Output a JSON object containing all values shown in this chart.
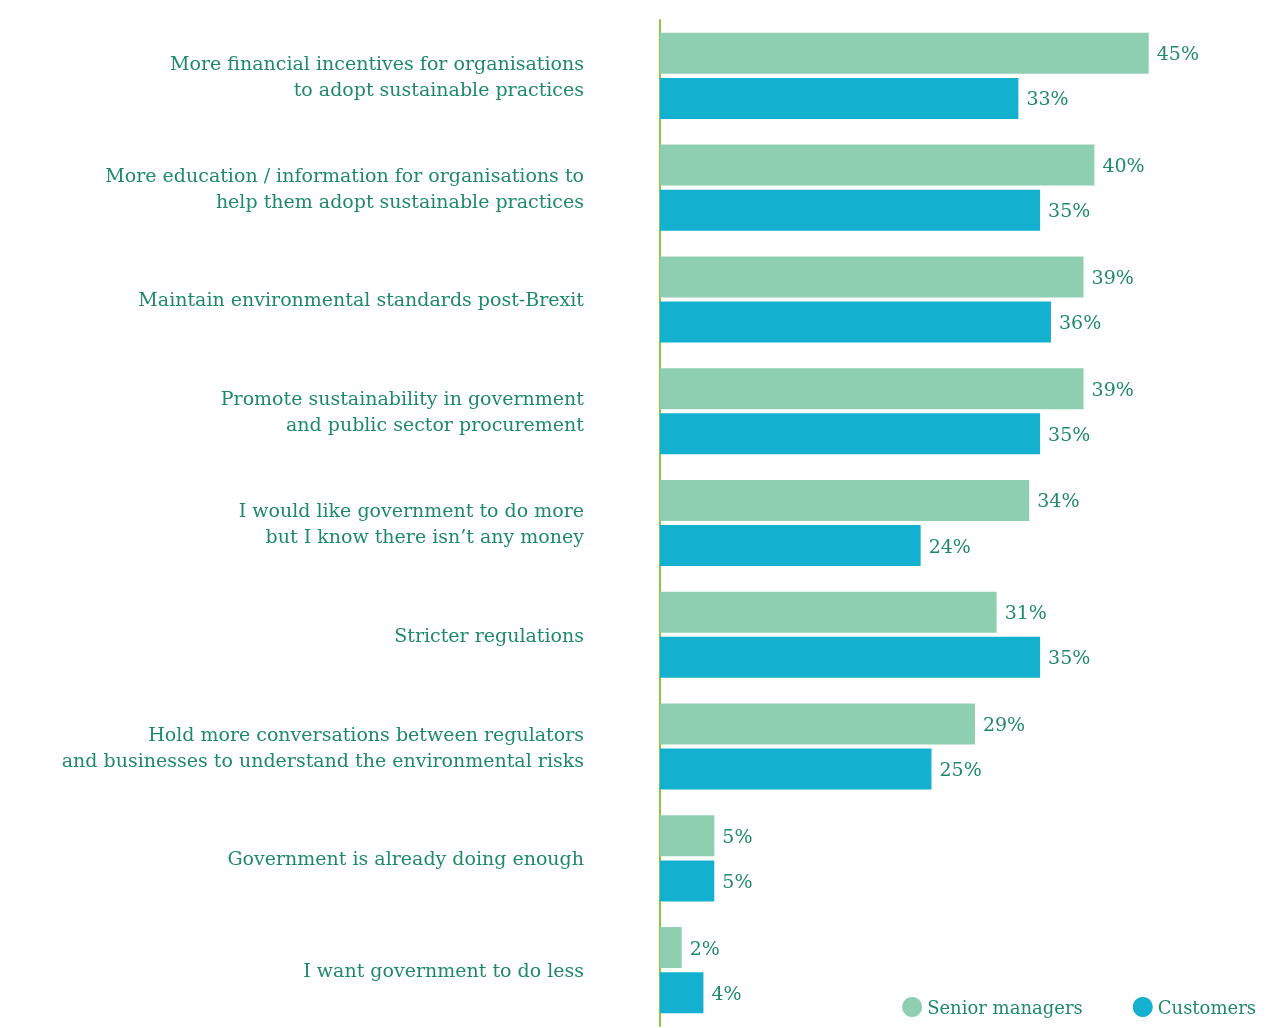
{
  "chart_data": {
    "type": "bar",
    "orientation": "horizontal",
    "legend": "bottom right",
    "categories": [
      "More financial incentives for organisations\nto adopt sustainable practices",
      "More education / information for organisations to\nhelp them adopt sustainable practices",
      "Maintain environmental standards post-Brexit",
      "Promote sustainability in government\nand public sector procurement",
      "I would like government to do more\nbut I know there isn’t any money",
      "Stricter regulations",
      "Hold more conversations between regulators\nand businesses to understand the environmental risks",
      "Government is already doing enough",
      "I want government to do less"
    ],
    "series": [
      {
        "name": "Senior managers",
        "color": "#8ecfb1",
        "values": [
          45,
          40,
          39,
          39,
          34,
          31,
          29,
          5,
          2
        ],
        "value_labels": [
          "45%",
          "40%",
          "39%",
          "39%",
          "34%",
          "31%",
          "29%",
          "5%",
          "2%"
        ]
      },
      {
        "name": "Customers",
        "color": "#14b0d0",
        "values": [
          33,
          35,
          36,
          35,
          24,
          35,
          25,
          5,
          4
        ],
        "value_labels": [
          "33%",
          "35%",
          "36%",
          "35%",
          "24%",
          "35%",
          "25%",
          "5%",
          "4%"
        ]
      }
    ]
  }
}
